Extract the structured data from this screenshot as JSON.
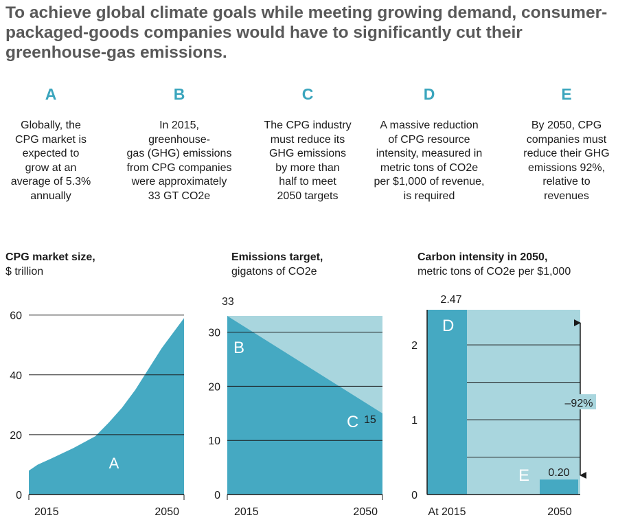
{
  "headline": "To achieve global climate goals while meeting growing demand, consumer-packaged-goods companies would have to significantly cut their greenhouse-gas emissions.",
  "steps": [
    {
      "letter": "A",
      "text": "Globally, the\nCPG  market is\nexpected to\ngrow at an\naverage of 5.3%\nannually"
    },
    {
      "letter": "B",
      "text": "In 2015,\ngreenhouse-\ngas (GHG) emissions\nfrom CPG companies\nwere approximately\n33 GT CO2e"
    },
    {
      "letter": "C",
      "text": "The CPG industry\nmust reduce its\nGHG emissions\nby more than\nhalf to meet\n2050 targets"
    },
    {
      "letter": "D",
      "text": "A massive reduction\nof CPG resource\nintensity, measured in\nmetric tons of CO2e\nper $1,000 of revenue,\nis required"
    },
    {
      "letter": "E",
      "text": "By 2050, CPG\ncompanies must\nreduce their GHG\nemissions 92%,\nrelative to\nrevenues"
    }
  ],
  "colors": {
    "dark": "#45a9c2",
    "light": "#a9d6de",
    "accent": "#3aa5bd",
    "axis": "#1b1b1b"
  },
  "chart_data": [
    {
      "type": "area",
      "title": "CPG market size,",
      "subtitle": "$ trillion",
      "x_labels": [
        "2015",
        "2050"
      ],
      "x": [
        2015,
        2017,
        2020,
        2025,
        2030,
        2033,
        2036,
        2039,
        2042,
        2045,
        2048,
        2050
      ],
      "values": [
        8,
        10,
        12,
        15.5,
        19.5,
        24,
        29,
        35,
        42,
        49,
        55,
        59
      ],
      "yticks": [
        0,
        20,
        40,
        60
      ],
      "ylim": [
        0,
        62
      ],
      "annotation": "A"
    },
    {
      "type": "area",
      "title": "Emissions target,",
      "subtitle": "gigatons of CO2e",
      "x_labels": [
        "2015",
        "2050"
      ],
      "baseline": {
        "start": 33,
        "end": 33
      },
      "target": {
        "start": 33,
        "end": 15
      },
      "yticks": [
        0,
        10,
        20,
        30
      ],
      "ylim": [
        0,
        34
      ],
      "start_label": "33",
      "end_label": "15",
      "annotations": [
        "B",
        "C"
      ]
    },
    {
      "type": "bar",
      "title": "Carbon intensity in 2050,",
      "subtitle": "metric tons of CO2e per $1,000",
      "categories": [
        "At 2015",
        "2050"
      ],
      "values": [
        2.47,
        0.2
      ],
      "value_labels": [
        "2.47",
        "0.20"
      ],
      "yticks": [
        0,
        1,
        2
      ],
      "ylim": [
        0,
        2.47
      ],
      "change_label": "–92%",
      "annotations": [
        "D",
        "E"
      ]
    }
  ]
}
